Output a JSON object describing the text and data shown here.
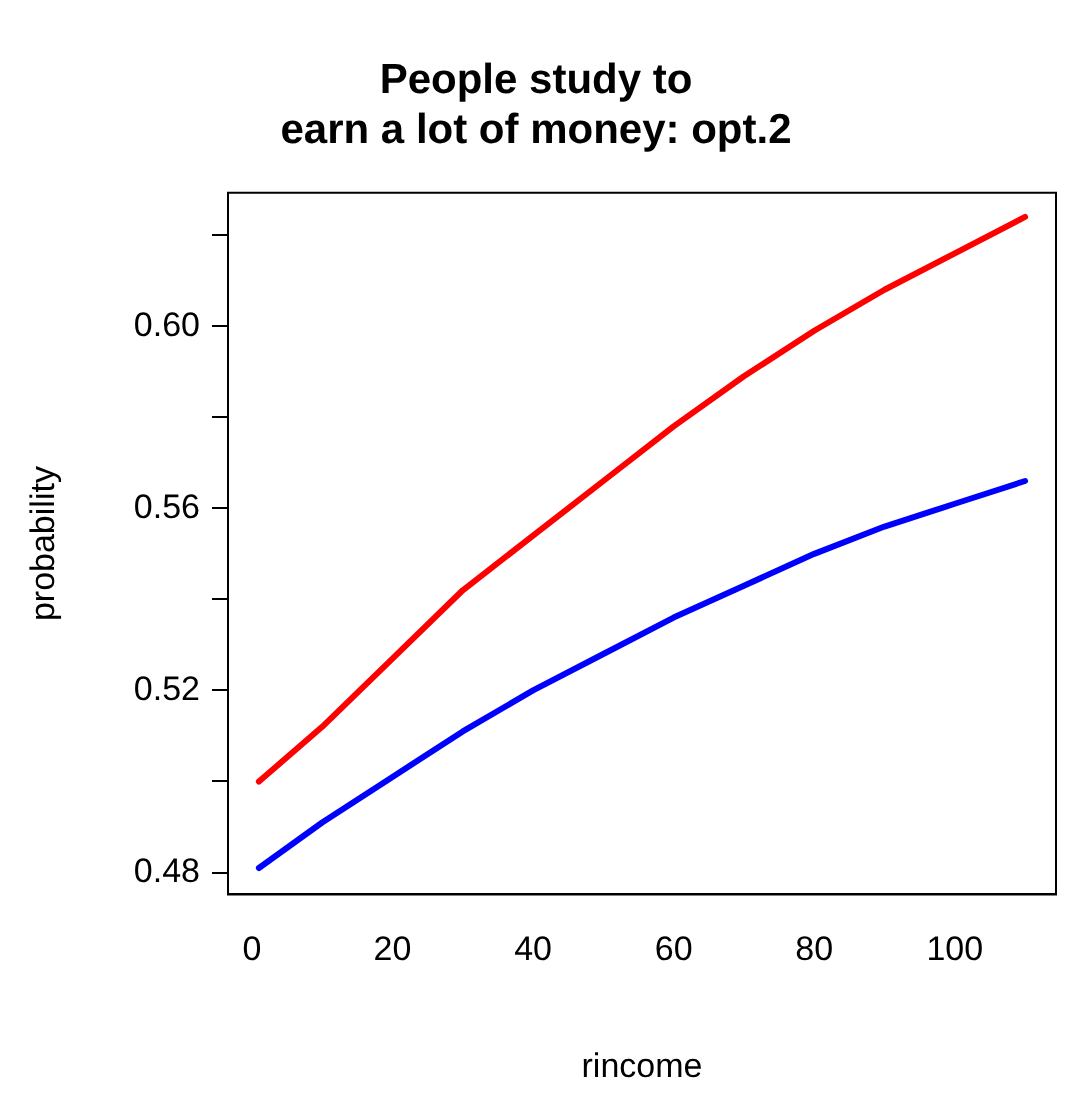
{
  "chart_data": {
    "type": "line",
    "title": "People study to\nearn a lot of money: opt.2",
    "xlabel": "rincome",
    "ylabel": "probability",
    "x": [
      1,
      10,
      20,
      30,
      40,
      50,
      60,
      70,
      80,
      90,
      100,
      110
    ],
    "series": [
      {
        "color": "#ff0000",
        "values": [
          0.5,
          0.512,
          0.527,
          0.542,
          0.554,
          0.566,
          0.578,
          0.589,
          0.599,
          0.608,
          0.616,
          0.624
        ]
      },
      {
        "color": "#0000ff",
        "values": [
          0.481,
          0.491,
          0.501,
          0.511,
          0.52,
          0.528,
          0.536,
          0.543,
          0.55,
          0.556,
          0.561,
          0.566
        ]
      }
    ],
    "xlim": [
      -3.4,
      114.4
    ],
    "xticks": [
      0,
      20,
      40,
      60,
      80,
      100
    ],
    "ylim": [
      0.4752,
      0.6293
    ],
    "yticks": [
      0.48,
      {
        "value": 0.5,
        "label": null
      },
      0.52,
      {
        "value": 0.54,
        "label": null
      },
      0.56,
      {
        "value": 0.58,
        "label": null
      },
      {
        "value": 0.6,
        "label": "0.60"
      },
      {
        "value": 0.62,
        "label": null
      }
    ],
    "grid": false,
    "legend": false,
    "marker": "none",
    "line_style": "solid"
  }
}
